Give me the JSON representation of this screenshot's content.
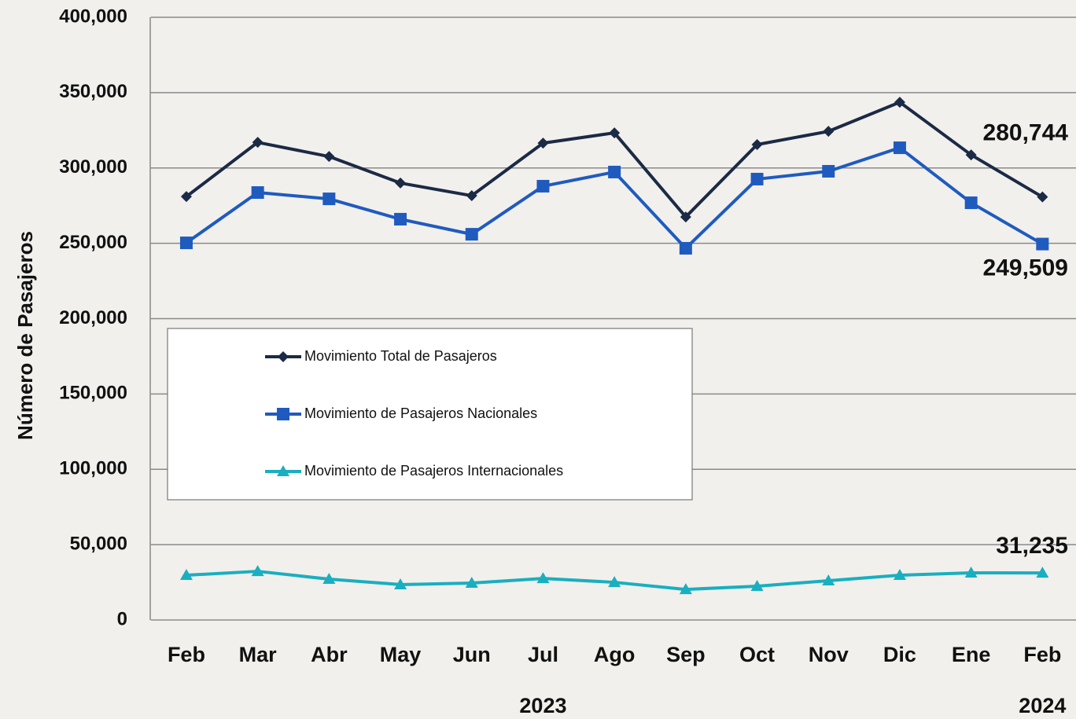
{
  "chart_data": {
    "type": "line",
    "y_label": "Número de Pasajeros",
    "categories": [
      "Feb",
      "Mar",
      "Abr",
      "May",
      "Jun",
      "Jul",
      "Ago",
      "Sep",
      "Oct",
      "Nov",
      "Dic",
      "Ene",
      "Feb"
    ],
    "category_years": [
      null,
      null,
      null,
      null,
      null,
      "2023",
      null,
      null,
      null,
      null,
      null,
      null,
      "2024"
    ],
    "ylim": [
      0,
      400000
    ],
    "yticks": [
      0,
      {
        "value": 50000,
        "label": "50,000"
      },
      {
        "value": 100000,
        "label": "100,000"
      },
      {
        "value": 150000,
        "label": "150,000"
      },
      {
        "value": 200000,
        "label": "200,000"
      },
      {
        "value": 250000,
        "label": "250,000"
      },
      {
        "value": 300000,
        "label": "300,000"
      },
      {
        "value": 350000,
        "label": "350,000"
      },
      {
        "value": 400000,
        "label": "400,000"
      }
    ],
    "grid": true,
    "series": [
      {
        "name": "Movimiento Total de Pasajeros",
        "color": "#1b2a45",
        "marker": "diamond",
        "values": [
          281000,
          317000,
          307600,
          290000,
          281600,
          316500,
          323300,
          267500,
          315500,
          324300,
          343600,
          308700,
          280744
        ],
        "value_labels": [
          null,
          null,
          null,
          null,
          null,
          null,
          null,
          null,
          null,
          null,
          null,
          null,
          "280,744"
        ]
      },
      {
        "name": "Movimiento de Pasajeros Nacionales",
        "color": "#1f5bbf",
        "marker": "square",
        "values": [
          250300,
          283700,
          279500,
          266000,
          256000,
          287900,
          297300,
          246700,
          292600,
          297800,
          313400,
          276900,
          249509
        ],
        "value_labels": [
          null,
          null,
          null,
          null,
          null,
          null,
          null,
          null,
          null,
          null,
          null,
          null,
          "249,509"
        ]
      },
      {
        "name": "Movimiento de Pasajeros Internacionales",
        "color": "#19afc0",
        "marker": "triangle",
        "values": [
          29700,
          32300,
          27100,
          23500,
          24500,
          27600,
          25000,
          20300,
          22400,
          26100,
          29700,
          31300,
          31235
        ],
        "value_labels": [
          null,
          null,
          null,
          null,
          null,
          null,
          null,
          null,
          null,
          null,
          null,
          null,
          "31,235"
        ]
      }
    ]
  }
}
